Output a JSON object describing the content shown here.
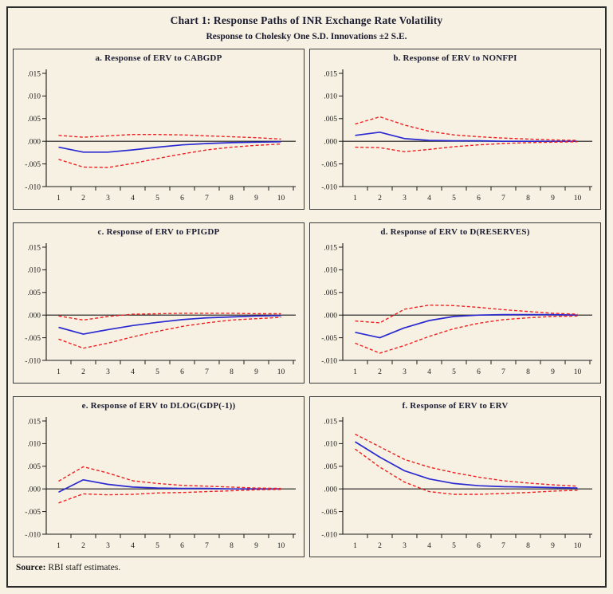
{
  "window": {
    "title": "Chart 1: Response Paths of INR Exchange Rate Volatility",
    "subtitle": "Response to Cholesky One S.D. Innovations ±2 S.E."
  },
  "footer": {
    "source_label": "Source:",
    "source_text": "RBI staff estimates."
  },
  "style": {
    "background": "#f7f1e3",
    "response_color": "#2a2ad0",
    "band_color": "#ee2020",
    "axis_color": "#1a1a1a",
    "title_color": "#1c1c30"
  },
  "chart_data": [
    {
      "id": "a",
      "type": "line",
      "title": "a. Response of ERV to CABGDP",
      "x": [
        1,
        2,
        3,
        4,
        5,
        6,
        7,
        8,
        9,
        10
      ],
      "ylim": [
        -0.01,
        0.015
      ],
      "y_ticks": [
        ".015",
        ".010",
        ".005",
        ".000",
        "-.005",
        "-.010"
      ],
      "grid": false,
      "legend": "none",
      "series": [
        {
          "name": "response",
          "color": "blue",
          "line": "solid",
          "values": [
            -0.0013,
            -0.0024,
            -0.0024,
            -0.0019,
            -0.0013,
            -0.0008,
            -0.0005,
            -0.0003,
            -0.0002,
            -0.0001
          ]
        },
        {
          "name": "upper-band",
          "color": "red",
          "line": "dashed",
          "values": [
            0.0013,
            0.0009,
            0.0012,
            0.0015,
            0.0015,
            0.0014,
            0.0012,
            0.001,
            0.0008,
            0.0005
          ]
        },
        {
          "name": "lower-band",
          "color": "red",
          "line": "dashed",
          "values": [
            -0.004,
            -0.0057,
            -0.0058,
            -0.0049,
            -0.0038,
            -0.0028,
            -0.0019,
            -0.0013,
            -0.0009,
            -0.0006
          ]
        }
      ]
    },
    {
      "id": "b",
      "type": "line",
      "title": "b. Response of ERV to NONFPI",
      "x": [
        1,
        2,
        3,
        4,
        5,
        6,
        7,
        8,
        9,
        10
      ],
      "ylim": [
        -0.01,
        0.015
      ],
      "y_ticks": [
        ".015",
        ".010",
        ".005",
        ".000",
        "-.005",
        "-.010"
      ],
      "grid": false,
      "legend": "none",
      "series": [
        {
          "name": "response",
          "color": "blue",
          "line": "solid",
          "values": [
            0.0013,
            0.002,
            0.0006,
            0.0002,
            0.0001,
            0.0001,
            0.0,
            0.0,
            0.0,
            0.0
          ]
        },
        {
          "name": "upper-band",
          "color": "red",
          "line": "dashed",
          "values": [
            0.0038,
            0.0054,
            0.0036,
            0.0022,
            0.0014,
            0.001,
            0.0007,
            0.0005,
            0.0003,
            0.0002
          ]
        },
        {
          "name": "lower-band",
          "color": "red",
          "line": "dashed",
          "values": [
            -0.0013,
            -0.0014,
            -0.0023,
            -0.0018,
            -0.0012,
            -0.0008,
            -0.0005,
            -0.0003,
            -0.0002,
            -0.0001
          ]
        }
      ]
    },
    {
      "id": "c",
      "type": "line",
      "title": "c. Response of ERV to FPIGDP",
      "x": [
        1,
        2,
        3,
        4,
        5,
        6,
        7,
        8,
        9,
        10
      ],
      "ylim": [
        -0.01,
        0.015
      ],
      "y_ticks": [
        ".015",
        ".010",
        ".005",
        ".000",
        "-.005",
        "-.010"
      ],
      "grid": false,
      "legend": "none",
      "series": [
        {
          "name": "response",
          "color": "blue",
          "line": "solid",
          "values": [
            -0.0027,
            -0.0042,
            -0.0032,
            -0.0023,
            -0.0016,
            -0.001,
            -0.0006,
            -0.0004,
            -0.0002,
            -0.0001
          ]
        },
        {
          "name": "upper-band",
          "color": "red",
          "line": "dashed",
          "values": [
            -0.0002,
            -0.0011,
            -0.0003,
            0.0002,
            0.0003,
            0.0004,
            0.0004,
            0.0004,
            0.0003,
            0.0003
          ]
        },
        {
          "name": "lower-band",
          "color": "red",
          "line": "dashed",
          "values": [
            -0.0053,
            -0.0073,
            -0.0062,
            -0.0048,
            -0.0036,
            -0.0025,
            -0.0017,
            -0.0011,
            -0.0008,
            -0.0005
          ]
        }
      ]
    },
    {
      "id": "d",
      "type": "line",
      "title": "d. Response of ERV to D(RESERVES)",
      "x": [
        1,
        2,
        3,
        4,
        5,
        6,
        7,
        8,
        9,
        10
      ],
      "ylim": [
        -0.01,
        0.015
      ],
      "y_ticks": [
        ".015",
        ".010",
        ".005",
        ".000",
        "-.005",
        "-.010"
      ],
      "grid": false,
      "legend": "none",
      "series": [
        {
          "name": "response",
          "color": "blue",
          "line": "solid",
          "values": [
            -0.0038,
            -0.005,
            -0.0028,
            -0.0012,
            -0.0003,
            0.0,
            0.0001,
            0.0001,
            0.0001,
            0.0
          ]
        },
        {
          "name": "upper-band",
          "color": "red",
          "line": "dashed",
          "values": [
            -0.0013,
            -0.0017,
            0.0013,
            0.0022,
            0.0021,
            0.0017,
            0.0012,
            0.0008,
            0.0004,
            0.0002
          ]
        },
        {
          "name": "lower-band",
          "color": "red",
          "line": "dashed",
          "values": [
            -0.0062,
            -0.0084,
            -0.0067,
            -0.0047,
            -0.003,
            -0.0018,
            -0.001,
            -0.0006,
            -0.0003,
            -0.0002
          ]
        }
      ]
    },
    {
      "id": "e",
      "type": "line",
      "title": "e. Response of ERV to DLOG(GDP(-1))",
      "x": [
        1,
        2,
        3,
        4,
        5,
        6,
        7,
        8,
        9,
        10
      ],
      "ylim": [
        -0.01,
        0.015
      ],
      "y_ticks": [
        ".015",
        ".010",
        ".005",
        ".000",
        "-.005",
        "-.010"
      ],
      "grid": false,
      "legend": "none",
      "series": [
        {
          "name": "response",
          "color": "blue",
          "line": "solid",
          "values": [
            -0.0007,
            0.002,
            0.001,
            0.0004,
            0.0002,
            0.0001,
            0.0001,
            0.0,
            0.0,
            0.0
          ]
        },
        {
          "name": "upper-band",
          "color": "red",
          "line": "dashed",
          "values": [
            0.0017,
            0.0049,
            0.0035,
            0.0018,
            0.0012,
            0.0008,
            0.0006,
            0.0004,
            0.0002,
            0.0001
          ]
        },
        {
          "name": "lower-band",
          "color": "red",
          "line": "dashed",
          "values": [
            -0.0031,
            -0.0011,
            -0.0013,
            -0.0012,
            -0.0009,
            -0.0008,
            -0.0006,
            -0.0004,
            -0.0002,
            -0.0001
          ]
        }
      ]
    },
    {
      "id": "f",
      "type": "line",
      "title": "f. Response of ERV to ERV",
      "x": [
        1,
        2,
        3,
        4,
        5,
        6,
        7,
        8,
        9,
        10
      ],
      "ylim": [
        -0.01,
        0.015
      ],
      "y_ticks": [
        ".015",
        ".010",
        ".005",
        ".000",
        "-.005",
        "-.010"
      ],
      "grid": false,
      "legend": "none",
      "series": [
        {
          "name": "response",
          "color": "blue",
          "line": "solid",
          "values": [
            0.0104,
            0.007,
            0.004,
            0.0022,
            0.0012,
            0.0007,
            0.0005,
            0.0004,
            0.0003,
            0.0002
          ]
        },
        {
          "name": "upper-band",
          "color": "red",
          "line": "dashed",
          "values": [
            0.0121,
            0.0093,
            0.0065,
            0.0048,
            0.0036,
            0.0026,
            0.0018,
            0.0013,
            0.0009,
            0.0006
          ]
        },
        {
          "name": "lower-band",
          "color": "red",
          "line": "dashed",
          "values": [
            0.0088,
            0.0048,
            0.0015,
            -0.0006,
            -0.0012,
            -0.0012,
            -0.001,
            -0.0008,
            -0.0005,
            -0.0003
          ]
        }
      ]
    }
  ]
}
